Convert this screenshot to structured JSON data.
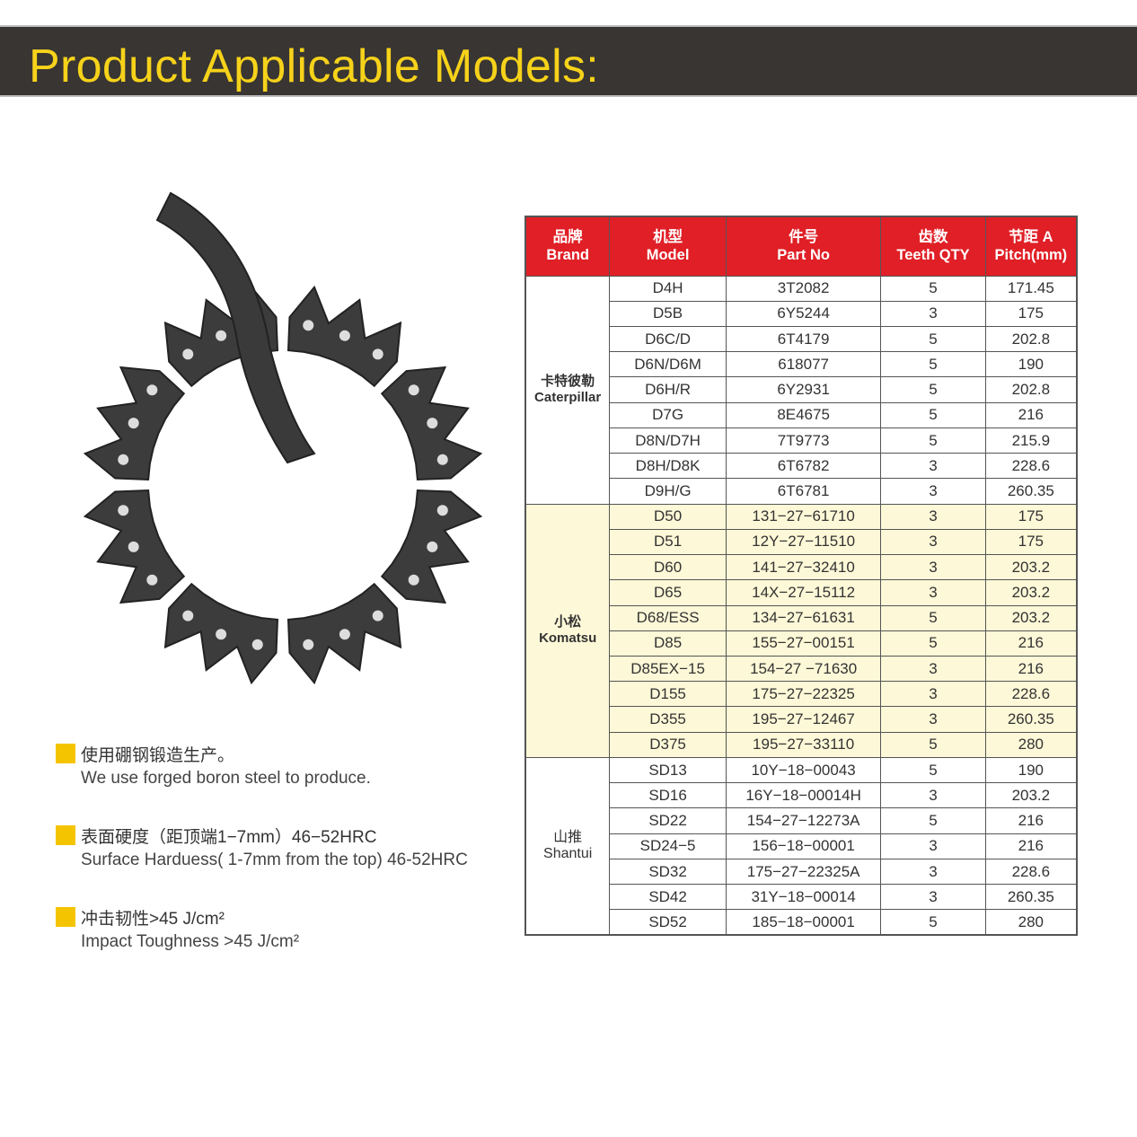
{
  "title": "Product Applicable Models:",
  "colors": {
    "banner": "#383533",
    "title": "#f6d21a",
    "header": "#e01f26",
    "komatsu_bg": "#fdf8d7",
    "bullet": "#f5c400"
  },
  "features": [
    {
      "cn": "使用硼钢锻造生产。",
      "en": "We use forged boron steel to produce."
    },
    {
      "cn": "表面硬度（距顶端1−7mm）46−52HRC",
      "en": "Surface Harduess( 1-7mm from the top) 46-52HRC"
    },
    {
      "cn": "冲击韧性>45 J/cm²",
      "en": "Impact Toughness >45 J/cm²"
    }
  ],
  "table": {
    "headers": [
      {
        "cn": "品牌",
        "en": "Brand"
      },
      {
        "cn": "机型",
        "en": "Model"
      },
      {
        "cn": "件号",
        "en": "Part No"
      },
      {
        "cn": "齿数",
        "en": "Teeth QTY"
      },
      {
        "cn": "节距 A",
        "en": "Pitch(mm)"
      }
    ],
    "groups": [
      {
        "brand_cn": "卡特彼勒",
        "brand_en": "Caterpillar",
        "rows": [
          [
            "D4H",
            "3T2082",
            "5",
            "171.45"
          ],
          [
            "D5B",
            "6Y5244",
            "3",
            "175"
          ],
          [
            "D6C/D",
            "6T4179",
            "5",
            "202.8"
          ],
          [
            "D6N/D6M",
            "618077",
            "5",
            "190"
          ],
          [
            "D6H/R",
            "6Y2931",
            "5",
            "202.8"
          ],
          [
            "D7G",
            "8E4675",
            "5",
            "216"
          ],
          [
            "D8N/D7H",
            "7T9773",
            "5",
            "215.9"
          ],
          [
            "D8H/D8K",
            "6T6782",
            "3",
            "228.6"
          ],
          [
            "D9H/G",
            "6T6781",
            "3",
            "260.35"
          ]
        ]
      },
      {
        "brand_cn": "小松",
        "brand_en": "Komatsu",
        "rows": [
          [
            "D50",
            "131−27−61710",
            "3",
            "175"
          ],
          [
            "D51",
            "12Y−27−11510",
            "3",
            "175"
          ],
          [
            "D60",
            "141−27−32410",
            "3",
            "203.2"
          ],
          [
            "D65",
            "14X−27−15112",
            "3",
            "203.2"
          ],
          [
            "D68/ESS",
            "134−27−61631",
            "5",
            "203.2"
          ],
          [
            "D85",
            "155−27−00151",
            "5",
            "216"
          ],
          [
            "D85EX−15",
            "154−27 −71630",
            "3",
            "216"
          ],
          [
            "D155",
            "175−27−22325",
            "3",
            "228.6"
          ],
          [
            "D355",
            "195−27−12467",
            "3",
            "260.35"
          ],
          [
            "D375",
            "195−27−33110",
            "5",
            "280"
          ]
        ]
      },
      {
        "brand_cn": "山推",
        "brand_en": "Shantui",
        "rows": [
          [
            "SD13",
            "10Y−18−00043",
            "5",
            "190"
          ],
          [
            "SD16",
            "16Y−18−00014H",
            "3",
            "203.2"
          ],
          [
            "SD22",
            "154−27−12273A",
            "5",
            "216"
          ],
          [
            "SD24−5",
            "156−18−00001",
            "3",
            "216"
          ],
          [
            "SD32",
            "175−27−22325A",
            "3",
            "228.6"
          ],
          [
            "SD42",
            "31Y−18−00014",
            "3",
            "260.35"
          ],
          [
            "SD52",
            "185−18−00001",
            "5",
            "280"
          ]
        ]
      }
    ]
  }
}
